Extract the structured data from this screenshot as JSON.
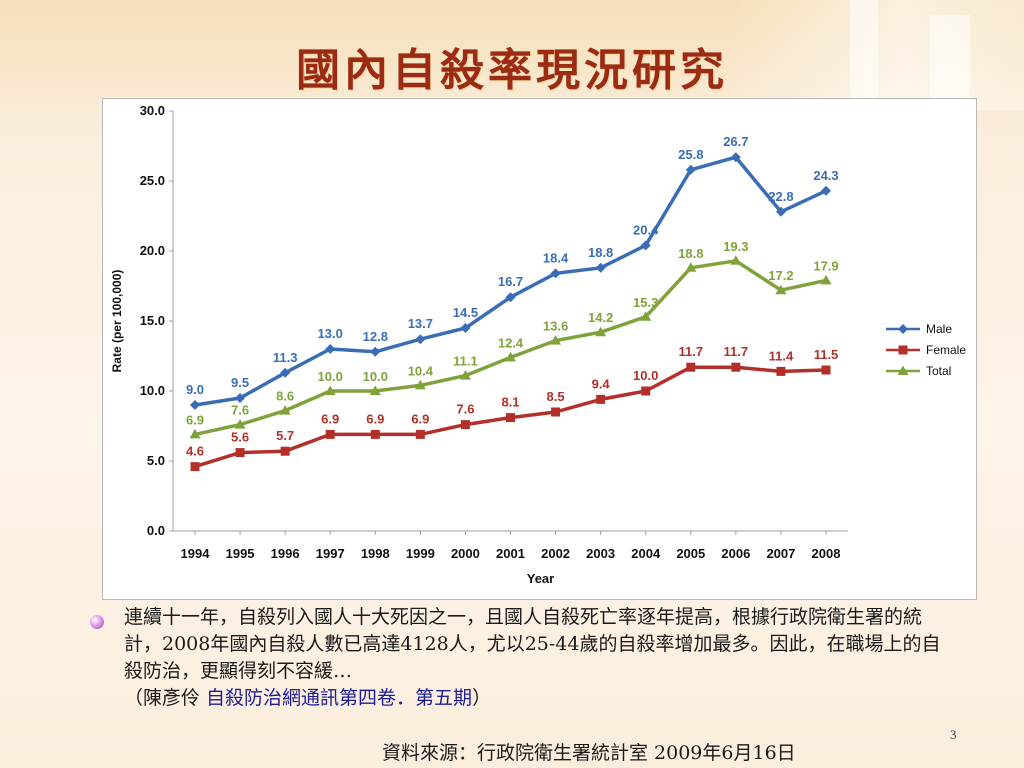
{
  "slide": {
    "title": "國內自殺率現況研究",
    "paragraph_main": "連續十一年，自殺列入國人十大死因之一，且國人自殺死亡率逐年提高，根據行政院衛生署的統計，2008年國內自殺人數已高達4128人，尤以25-44歲的自殺率增加最多。因此，在職場上的自殺防治，更顯得刻不容緩…",
    "paragraph_ref_open": "（陳彥伶 ",
    "paragraph_ref_source": "自殺防治網通訊第四卷．第五期",
    "paragraph_ref_close": "）",
    "page_number": "3",
    "source_note": "資料來源：行政院衛生署統計室 2009年6月16日"
  },
  "chart_data": {
    "type": "line",
    "x": [
      "1994",
      "1995",
      "1996",
      "1997",
      "1998",
      "1999",
      "2000",
      "2001",
      "2002",
      "2003",
      "2004",
      "2005",
      "2006",
      "2007",
      "2008"
    ],
    "xlabel": "Year",
    "ylabel": "Rate (per 100,000)",
    "ylim": [
      0,
      30
    ],
    "yticks": [
      "0.0",
      "5.0",
      "10.0",
      "15.0",
      "20.0",
      "25.0",
      "30.0"
    ],
    "legend_position": "right",
    "series": [
      {
        "name": "Male",
        "color": "#3a6db5",
        "marker": "diamond",
        "values": [
          9.0,
          9.5,
          11.3,
          13.0,
          12.8,
          13.7,
          14.5,
          16.7,
          18.4,
          18.8,
          20.4,
          25.8,
          26.7,
          22.8,
          24.3
        ],
        "labels": [
          "9.0",
          "9.5",
          "11.3",
          "13.0",
          "12.8",
          "13.7",
          "14.5",
          "16.7",
          "18.4",
          "18.8",
          "20.4",
          "25.8",
          "26.7",
          "22.8",
          "24.3"
        ]
      },
      {
        "name": "Female",
        "color": "#b3302a",
        "marker": "square",
        "values": [
          4.6,
          5.6,
          5.7,
          6.9,
          6.9,
          6.9,
          7.6,
          8.1,
          8.5,
          9.4,
          10.0,
          11.7,
          11.7,
          11.4,
          11.5
        ],
        "labels": [
          "4.6",
          "5.6",
          "5.7",
          "6.9",
          "6.9",
          "6.9",
          "7.6",
          "8.1",
          "8.5",
          "9.4",
          "10.0",
          "11.7",
          "11.7",
          "11.4",
          "11.5"
        ]
      },
      {
        "name": "Total",
        "color": "#7fa33a",
        "marker": "triangle",
        "values": [
          6.9,
          7.6,
          8.6,
          10.0,
          10.0,
          10.4,
          11.1,
          12.4,
          13.6,
          14.2,
          15.3,
          18.8,
          19.3,
          17.2,
          17.9
        ],
        "labels": [
          "6.9",
          "7.6",
          "8.6",
          "10.0",
          "10.0",
          "10.4",
          "11.1",
          "12.4",
          "13.6",
          "14.2",
          "15.3",
          "18.8",
          "19.3",
          "17.2",
          "17.9"
        ]
      }
    ]
  }
}
